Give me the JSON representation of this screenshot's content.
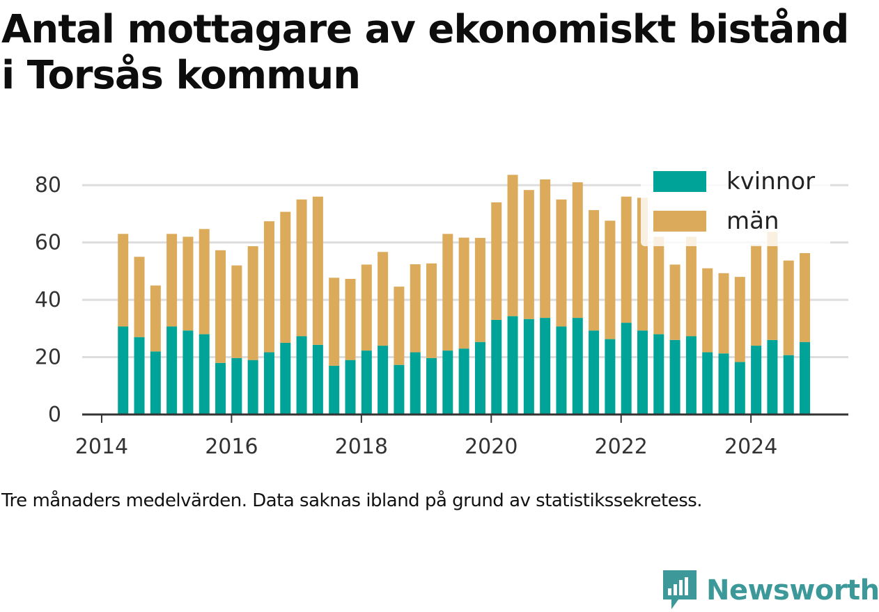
{
  "title_line1": "Antal mottagare av ekonomiskt bistånd",
  "title_line2": "i Torsås kommun",
  "caption": "Tre månaders medelvärden. Data saknas ibland på grund av statistikssekretess.",
  "brand": {
    "name": "Newsworthy",
    "icon": "bar-chart-speech-bubble-icon",
    "color": "#3d9999"
  },
  "colors": {
    "kvinnor": "#00a398",
    "man": "#dbab5b",
    "grid": "#dddddd",
    "axis": "#333333"
  },
  "chart_data": {
    "type": "bar",
    "stacked": true,
    "title": "Antal mottagare av ekonomiskt bistånd i Torsås kommun",
    "x_ticks": [
      "2014",
      "2016",
      "2018",
      "2020",
      "2022",
      "2024"
    ],
    "y_ticks": [
      "0",
      "20",
      "40",
      "60",
      "80"
    ],
    "ylim": [
      0,
      90
    ],
    "xlim": [
      2013.7,
      2025.5
    ],
    "grid": true,
    "legend": {
      "placement": "top-right",
      "entries": [
        "kvinnor",
        "män"
      ]
    },
    "x": [
      2014.33,
      2014.58,
      2014.83,
      2015.08,
      2015.33,
      2015.58,
      2015.83,
      2016.08,
      2016.33,
      2016.58,
      2016.83,
      2017.08,
      2017.33,
      2017.58,
      2017.83,
      2018.08,
      2018.33,
      2018.58,
      2018.83,
      2019.08,
      2019.33,
      2019.58,
      2019.83,
      2020.08,
      2020.33,
      2020.58,
      2020.83,
      2021.08,
      2021.33,
      2021.58,
      2021.83,
      2022.08,
      2022.33,
      2022.58,
      2022.83,
      2023.08,
      2023.33,
      2023.58,
      2023.83,
      2024.08,
      2024.33,
      2024.58,
      2024.83
    ],
    "series": [
      {
        "name": "kvinnor",
        "values": [
          30.7,
          27,
          22,
          30.7,
          29.3,
          28,
          18,
          19.7,
          19,
          21.7,
          25,
          27.3,
          24.3,
          17,
          19,
          22.3,
          24,
          17.3,
          21.7,
          19.7,
          22.3,
          23,
          25.3,
          33,
          34.3,
          33.3,
          33.7,
          30.7,
          33.7,
          29.3,
          26.3,
          32,
          29.3,
          28,
          26,
          27.3,
          21.7,
          21.3,
          18.3,
          24,
          26,
          20.7,
          25.3
        ]
      },
      {
        "name": "män",
        "values": [
          32.3,
          28,
          23,
          32.3,
          32.7,
          36.7,
          39.3,
          32.3,
          39.7,
          45.7,
          45.7,
          47.7,
          51.7,
          30.7,
          28.3,
          30,
          32.7,
          27.3,
          30.7,
          33,
          40.7,
          38.7,
          36.3,
          41,
          49.3,
          45,
          48.3,
          44.3,
          47.3,
          42,
          41.3,
          44,
          46.3,
          34,
          26.3,
          34.7,
          29.3,
          28,
          29.7,
          35.3,
          37.7,
          33,
          31
        ]
      }
    ]
  }
}
